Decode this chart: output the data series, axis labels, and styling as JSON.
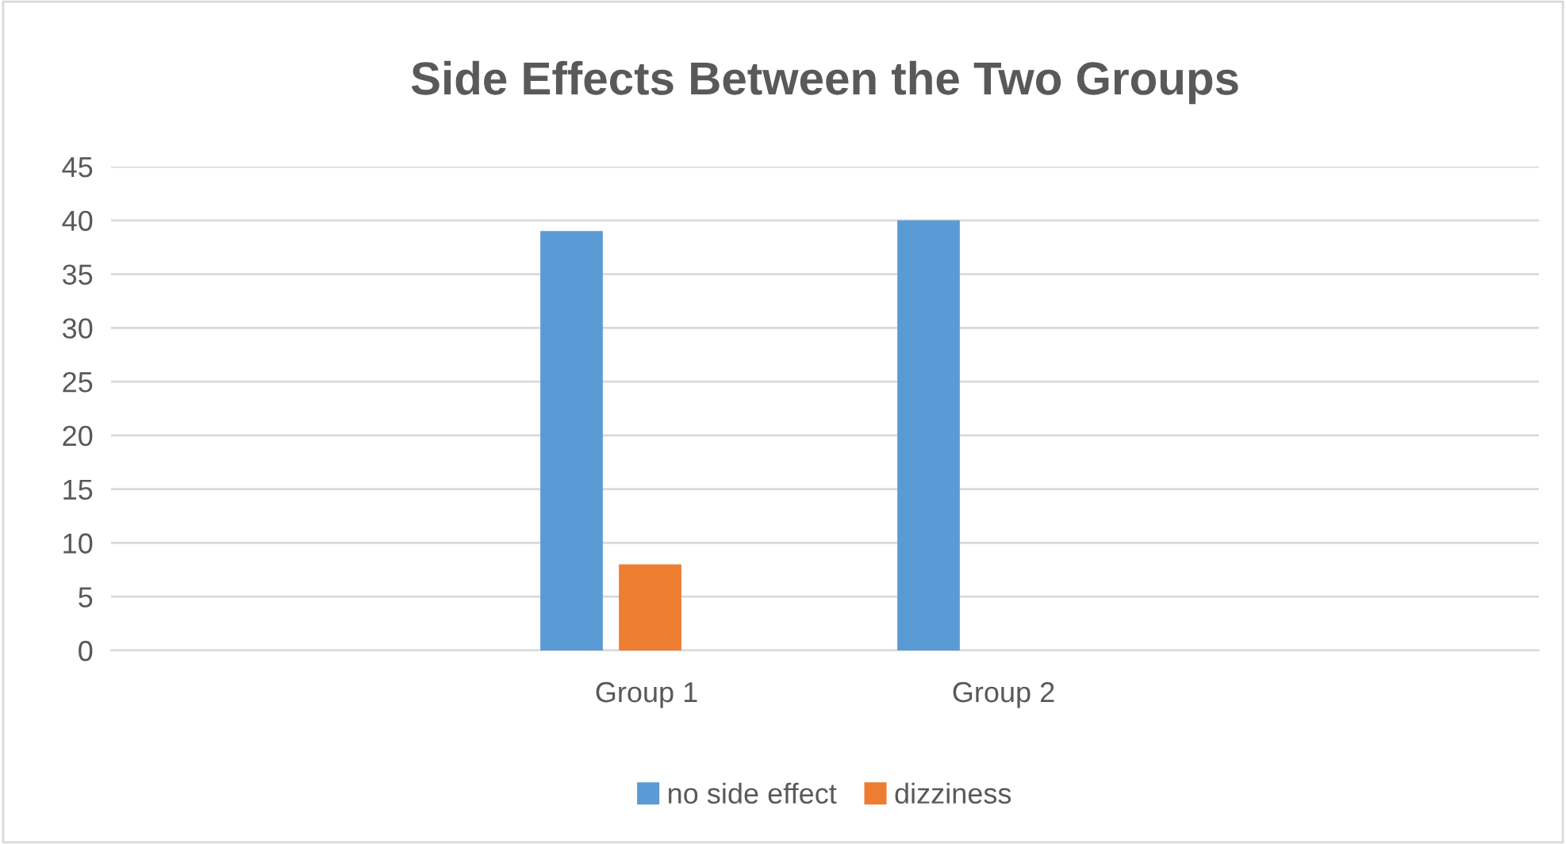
{
  "chart_data": {
    "type": "bar",
    "title": "Side Effects Between the Two Groups",
    "categories": [
      null,
      "Group 1",
      "Group 2",
      null
    ],
    "series": [
      {
        "name": "no side effect",
        "color": "#5b9bd5",
        "values": [
          null,
          39,
          40,
          null
        ]
      },
      {
        "name": "dizziness",
        "color": "#ed7d31",
        "values": [
          null,
          8,
          null,
          null
        ]
      }
    ],
    "ylim": [
      0,
      45
    ],
    "yticks": [
      0,
      5,
      10,
      15,
      20,
      25,
      30,
      35,
      40,
      45
    ],
    "grid": "y",
    "legend": "bottom"
  }
}
